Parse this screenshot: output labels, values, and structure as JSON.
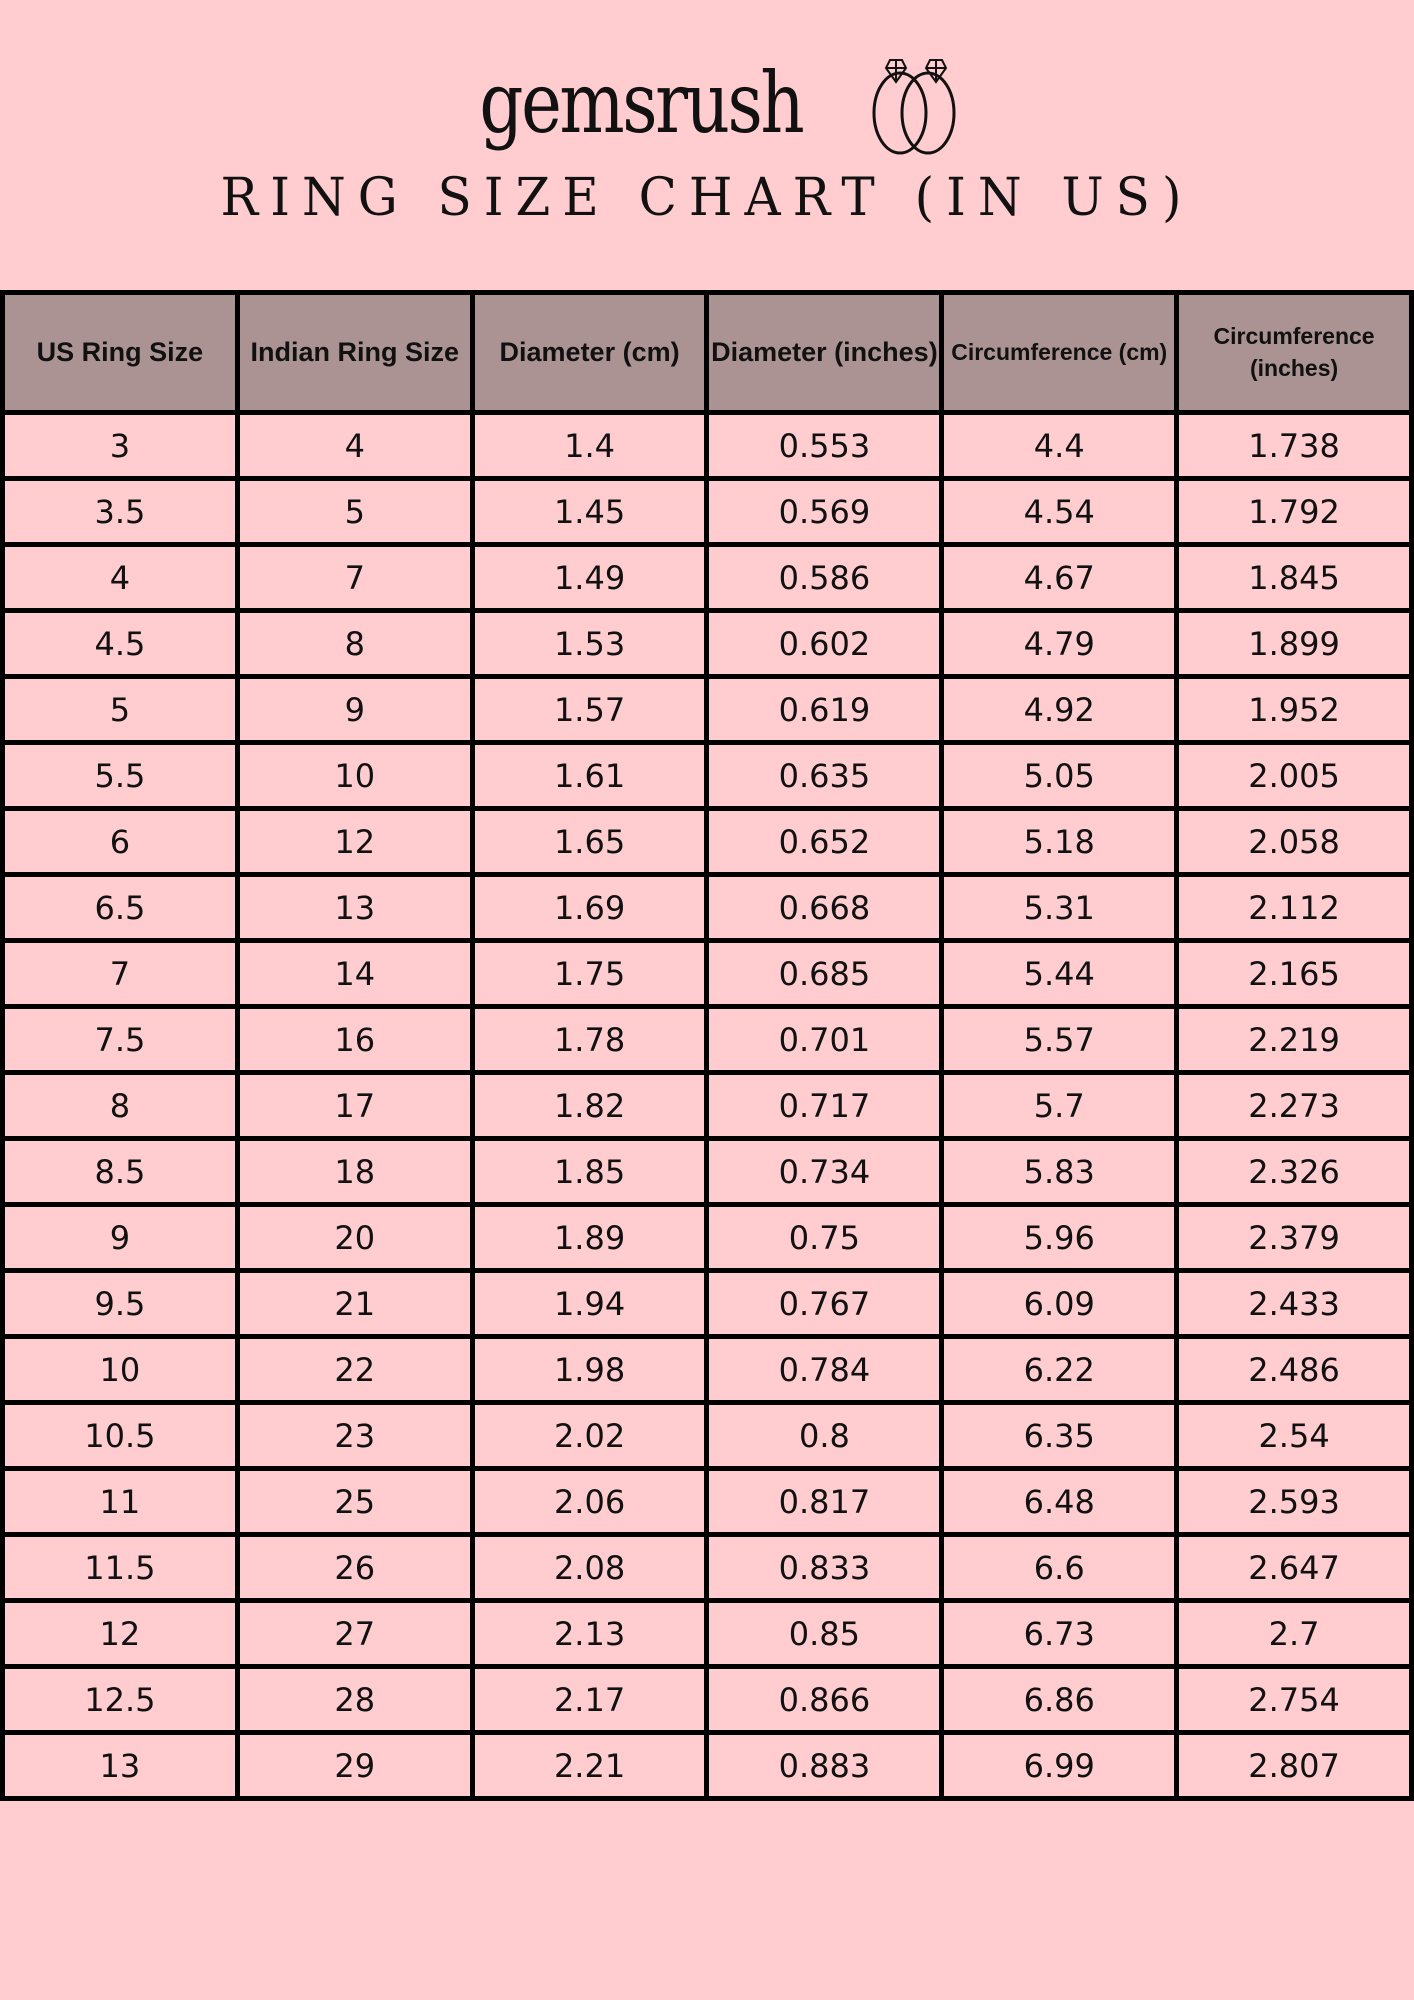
{
  "brand": {
    "name": "gemsrush"
  },
  "title": "RING SIZE CHART (IN US)",
  "table": {
    "headers": [
      "US Ring Size",
      "Indian Ring Size",
      "Diameter (cm)",
      "Diameter (inches)",
      "Circumference (cm)",
      "Circumference (inches)"
    ],
    "rows": [
      [
        "3",
        "4",
        "1.4",
        "0.553",
        "4.4",
        "1.738"
      ],
      [
        "3.5",
        "5",
        "1.45",
        "0.569",
        "4.54",
        "1.792"
      ],
      [
        "4",
        "7",
        "1.49",
        "0.586",
        "4.67",
        "1.845"
      ],
      [
        "4.5",
        "8",
        "1.53",
        "0.602",
        "4.79",
        "1.899"
      ],
      [
        "5",
        "9",
        "1.57",
        "0.619",
        "4.92",
        "1.952"
      ],
      [
        "5.5",
        "10",
        "1.61",
        "0.635",
        "5.05",
        "2.005"
      ],
      [
        "6",
        "12",
        "1.65",
        "0.652",
        "5.18",
        "2.058"
      ],
      [
        "6.5",
        "13",
        "1.69",
        "0.668",
        "5.31",
        "2.112"
      ],
      [
        "7",
        "14",
        "1.75",
        "0.685",
        "5.44",
        "2.165"
      ],
      [
        "7.5",
        "16",
        "1.78",
        "0.701",
        "5.57",
        "2.219"
      ],
      [
        "8",
        "17",
        "1.82",
        "0.717",
        "5.7",
        "2.273"
      ],
      [
        "8.5",
        "18",
        "1.85",
        "0.734",
        "5.83",
        "2.326"
      ],
      [
        "9",
        "20",
        "1.89",
        "0.75",
        "5.96",
        "2.379"
      ],
      [
        "9.5",
        "21",
        "1.94",
        "0.767",
        "6.09",
        "2.433"
      ],
      [
        "10",
        "22",
        "1.98",
        "0.784",
        "6.22",
        "2.486"
      ],
      [
        "10.5",
        "23",
        "2.02",
        "0.8",
        "6.35",
        "2.54"
      ],
      [
        "11",
        "25",
        "2.06",
        "0.817",
        "6.48",
        "2.593"
      ],
      [
        "11.5",
        "26",
        "2.08",
        "0.833",
        "6.6",
        "2.647"
      ],
      [
        "12",
        "27",
        "2.13",
        "0.85",
        "6.73",
        "2.7"
      ],
      [
        "12.5",
        "28",
        "2.17",
        "0.866",
        "6.86",
        "2.754"
      ],
      [
        "13",
        "29",
        "2.21",
        "0.883",
        "6.99",
        "2.807"
      ]
    ]
  },
  "colors": {
    "background": "#ffcdcf",
    "header": "#ab9393",
    "border": "#000000"
  }
}
